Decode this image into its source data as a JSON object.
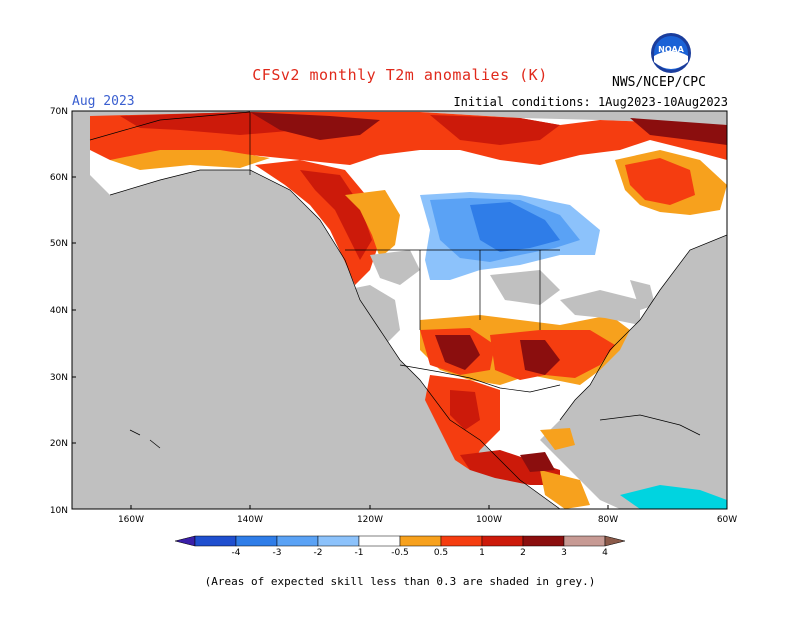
{
  "header": {
    "title": "CFSv2 monthly T2m anomalies (K)",
    "month": "Aug 2023",
    "initial_conditions": "Initial conditions: 1Aug2023-10Aug2023",
    "agency": "NWS/NCEP/CPC",
    "logo_text": "NOAA"
  },
  "map": {
    "lat_labels": [
      "70N",
      "60N",
      "50N",
      "40N",
      "30N",
      "20N",
      "10N"
    ],
    "lon_labels": [
      "160W",
      "140W",
      "120W",
      "100W",
      "80W",
      "60W"
    ],
    "mask_color": "#c0c0c0",
    "ocean_color": "#c0c0c0"
  },
  "colorbar": {
    "ticks": [
      "-4",
      "-3",
      "-2",
      "-1",
      "-0.5",
      "0.5",
      "1",
      "2",
      "3",
      "4"
    ],
    "colors": [
      "#3a1fa8",
      "#1f4fcf",
      "#2f7de8",
      "#5aa2f5",
      "#8cc2fb",
      "#ffffff",
      "#f7a11d",
      "#f53d10",
      "#cc1a0a",
      "#8b0e0e",
      "#c79a94",
      "#8b5a4a"
    ]
  },
  "footnote": "(Areas of expected skill less than 0.3 are shaded in grey.)"
}
